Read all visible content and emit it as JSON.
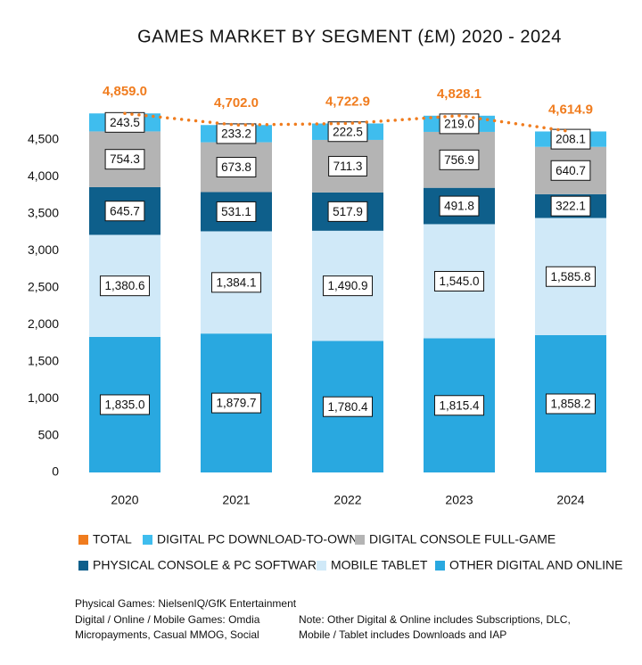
{
  "chart_data": {
    "type": "stacked-bar",
    "title": "GAMES MARKET BY SEGMENT (£M) 2020 - 2024",
    "categories": [
      "2020",
      "2021",
      "2022",
      "2023",
      "2024"
    ],
    "series": [
      {
        "name": "OTHER DIGITAL AND ONLINE",
        "color": "#29a8e0",
        "values": [
          1835.0,
          1879.7,
          1780.4,
          1815.4,
          1858.2
        ],
        "value_labels": [
          "1,835.0",
          "1,879.7",
          "1,780.4",
          "1,815.4",
          "1,858.2"
        ]
      },
      {
        "name": "MOBILE TABLET",
        "color": "#d0e9f8",
        "values": [
          1380.6,
          1384.1,
          1490.9,
          1545.0,
          1585.8
        ],
        "value_labels": [
          "1,380.6",
          "1,384.1",
          "1,490.9",
          "1,545.0",
          "1,585.8"
        ]
      },
      {
        "name": "PHYSICAL CONSOLE & PC SOFTWARE",
        "color": "#0e5f8b",
        "values": [
          645.7,
          531.1,
          517.9,
          491.8,
          322.1
        ],
        "value_labels": [
          "645.7",
          "531.1",
          "517.9",
          "491.8",
          "322.1"
        ]
      },
      {
        "name": "DIGITAL CONSOLE FULL-GAME",
        "color": "#b4b4b4",
        "values": [
          754.3,
          673.8,
          711.3,
          756.9,
          640.7
        ],
        "value_labels": [
          "754.3",
          "673.8",
          "711.3",
          "756.9",
          "640.7"
        ]
      },
      {
        "name": "DIGITAL PC DOWNLOAD-TO-OWN",
        "color": "#3fbdee",
        "values": [
          243.5,
          233.2,
          222.5,
          219.0,
          208.1
        ],
        "value_labels": [
          "243.5",
          "233.2",
          "222.5",
          "219.0",
          "208.1"
        ]
      }
    ],
    "total": {
      "name": "TOTAL",
      "color": "#f07c1e",
      "values": [
        4859.0,
        4702.0,
        4722.9,
        4828.1,
        4614.9
      ],
      "value_labels": [
        "4,859.0",
        "4,702.0",
        "4,722.9",
        "4,828.1",
        "4,614.9"
      ]
    },
    "ylim": [
      0,
      5200
    ],
    "yticks": [
      0,
      500,
      {
        "value": 1000,
        "label": "1,000"
      },
      {
        "value": 1500,
        "label": "1,500"
      },
      {
        "value": 2000,
        "label": "2,000"
      },
      {
        "value": 2500,
        "label": "2,500"
      },
      {
        "value": 3000,
        "label": "3,000"
      },
      {
        "value": 3500,
        "label": "3,500"
      },
      {
        "value": 4000,
        "label": "4,000"
      },
      {
        "value": 4500,
        "label": "4,500"
      }
    ],
    "grid": false,
    "notes": [
      "Physical Games: NielsenIQ/GfK Entertainment",
      "Digital / Online / Mobile Games: Omdia",
      "Micropayments, Casual MMOG, Social",
      "Note: Other Digital & Online includes Subscriptions, DLC,",
      "Mobile / Tablet includes Downloads and IAP"
    ]
  }
}
